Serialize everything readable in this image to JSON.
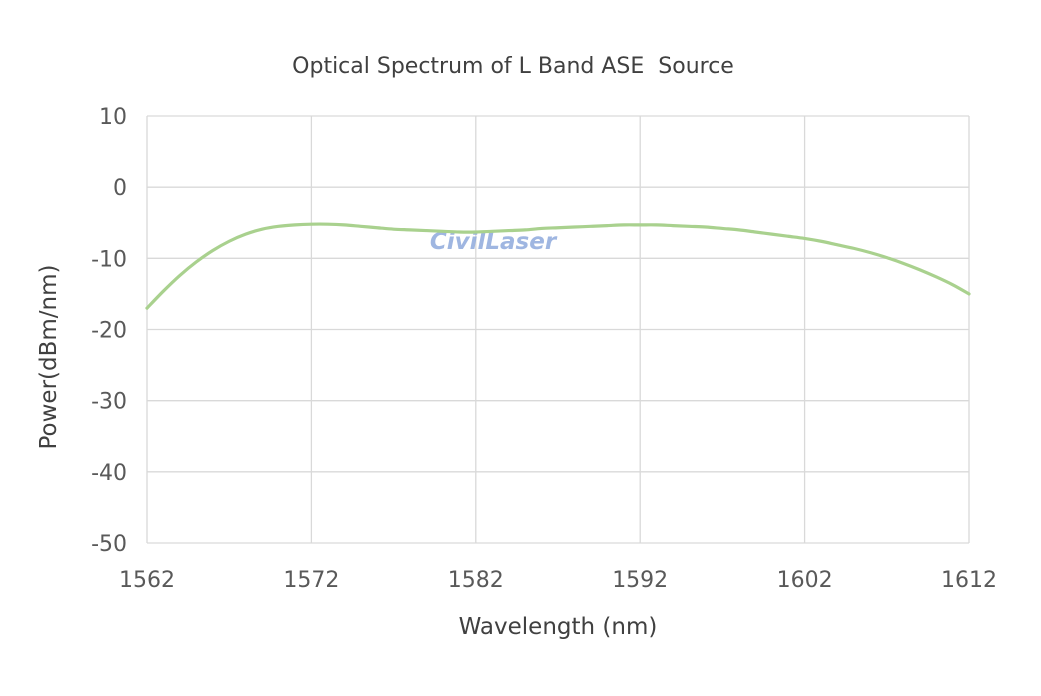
{
  "chart_data": {
    "type": "line",
    "title": "Optical Spectrum of L Band ASE  Source",
    "xlabel": "Wavelength (nm)",
    "ylabel": "Power(dBm/nm)",
    "xlim": [
      1562,
      1612
    ],
    "ylim": [
      -50,
      10
    ],
    "xticks": [
      1562,
      1572,
      1582,
      1592,
      1602,
      1612
    ],
    "yticks": [
      10,
      0,
      -10,
      -20,
      -30,
      -40,
      -50
    ],
    "grid": true,
    "watermark": "CivilLaser",
    "series": [
      {
        "color": "#a9d18e",
        "x": [
          1562,
          1563,
          1564,
          1565,
          1566,
          1567,
          1568,
          1569,
          1570,
          1571,
          1572,
          1573,
          1574,
          1575,
          1576,
          1577,
          1578,
          1579,
          1580,
          1581,
          1582,
          1583,
          1584,
          1585,
          1586,
          1587,
          1588,
          1589,
          1590,
          1591,
          1592,
          1593,
          1594,
          1595,
          1596,
          1597,
          1598,
          1599,
          1600,
          1601,
          1602,
          1603,
          1604,
          1605,
          1606,
          1607,
          1608,
          1609,
          1610,
          1611,
          1612
        ],
        "y": [
          -17.0,
          -14.6,
          -12.4,
          -10.5,
          -8.9,
          -7.6,
          -6.6,
          -5.9,
          -5.5,
          -5.3,
          -5.2,
          -5.2,
          -5.3,
          -5.5,
          -5.7,
          -5.9,
          -6.0,
          -6.1,
          -6.2,
          -6.3,
          -6.3,
          -6.2,
          -6.1,
          -6.0,
          -5.8,
          -5.7,
          -5.6,
          -5.5,
          -5.4,
          -5.3,
          -5.3,
          -5.3,
          -5.4,
          -5.5,
          -5.6,
          -5.8,
          -6.0,
          -6.3,
          -6.6,
          -6.9,
          -7.2,
          -7.6,
          -8.1,
          -8.6,
          -9.2,
          -9.9,
          -10.7,
          -11.6,
          -12.6,
          -13.7,
          -15.0
        ]
      }
    ]
  }
}
